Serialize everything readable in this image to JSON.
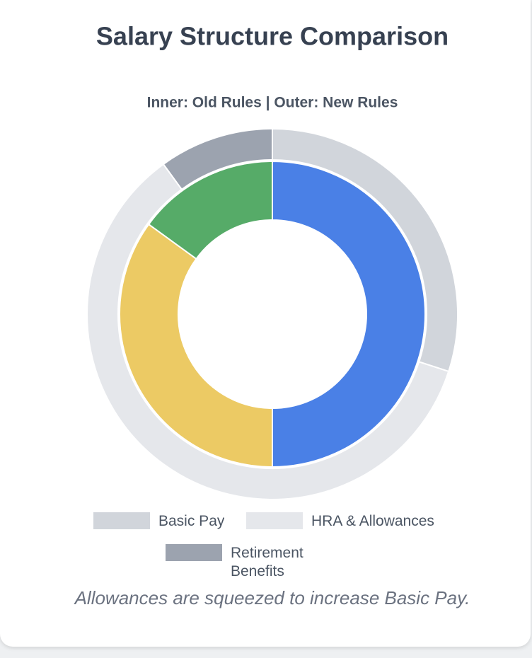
{
  "chart_data": {
    "type": "doughnut",
    "title": "Salary Structure Comparison",
    "subtitle": "Inner: Old Rules | Outer: New Rules",
    "categories": [
      "Basic Pay",
      "HRA & Allowances",
      "Retirement Benefits"
    ],
    "series": [
      {
        "values": [
          50,
          35,
          15
        ],
        "colors": [
          "#4a80e6",
          "#ecca64",
          "#56ab68"
        ]
      },
      {
        "values": [
          30,
          60,
          10
        ],
        "colors": [
          "#d1d5db",
          "#e5e7eb",
          "#9ca3af"
        ]
      }
    ],
    "legend": "bottom",
    "footnote": "Allowances are squeezed to increase Basic Pay."
  }
}
